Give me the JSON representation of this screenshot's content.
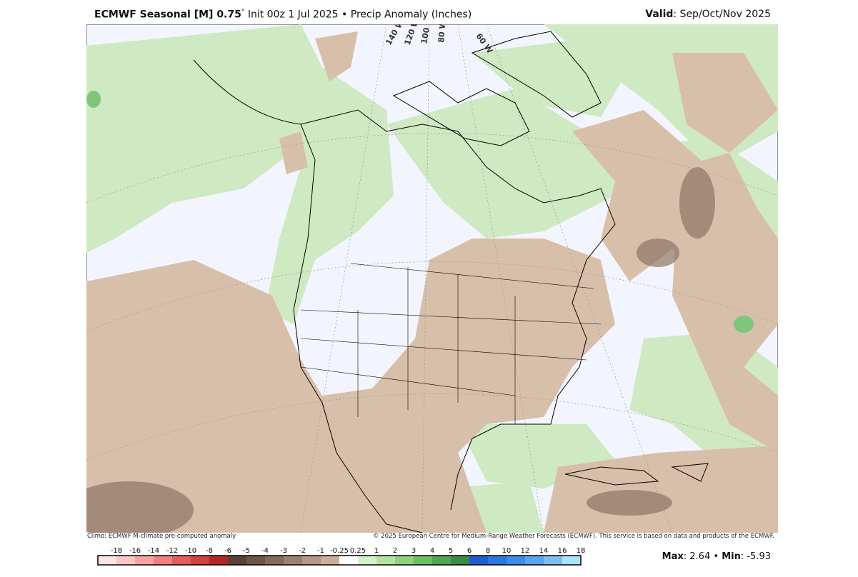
{
  "header": {
    "title": "ECMWF Seasonal [M] 0.75",
    "degree": "°",
    "init": "Init 00z 1 Jul 2025",
    "bullet": "•",
    "field": "Precip Anomaly (Inches)",
    "valid_label": "Valid",
    "valid_value": ": Sep/Oct/Nov 2025"
  },
  "map": {
    "longitude_labels": [
      "140 W",
      "120 W",
      "100 W",
      "80 W",
      "60 W"
    ]
  },
  "footer": {
    "climo": "Climo: ECMWF M-climate pre-computed anomaly",
    "copyright": "© 2025 European Centre for Medium-Range Weather Forecasts (ECMWF). This service is based on data and products of the ECMWF."
  },
  "colorbar": {
    "labels": [
      -18,
      -16,
      -14,
      -12,
      -10,
      -8,
      -6,
      -5,
      -4,
      -3,
      -2,
      -1,
      -0.25,
      0.25,
      1,
      2,
      3,
      4,
      5,
      6,
      8,
      10,
      12,
      14,
      16,
      18
    ],
    "colors": [
      "#fde3e3",
      "#fbc6c6",
      "#f7a3a3",
      "#f08080",
      "#e25c5c",
      "#d24040",
      "#b52626",
      "#5b4036",
      "#6f5347",
      "#86695b",
      "#9d8170",
      "#b49785",
      "#cbae99",
      "#ffffff",
      "#d5f1c9",
      "#b3e2a3",
      "#8fd081",
      "#6dbe64",
      "#52a652",
      "#3c8a46",
      "#1f5fcb",
      "#2b75df",
      "#3e8be8",
      "#58a4ee",
      "#7bbef3",
      "#aee2f8"
    ]
  },
  "stats": {
    "max_label": "Max",
    "max_value": ": 2.64",
    "bullet": "•",
    "min_label": "Min",
    "min_value": ": -5.93"
  }
}
